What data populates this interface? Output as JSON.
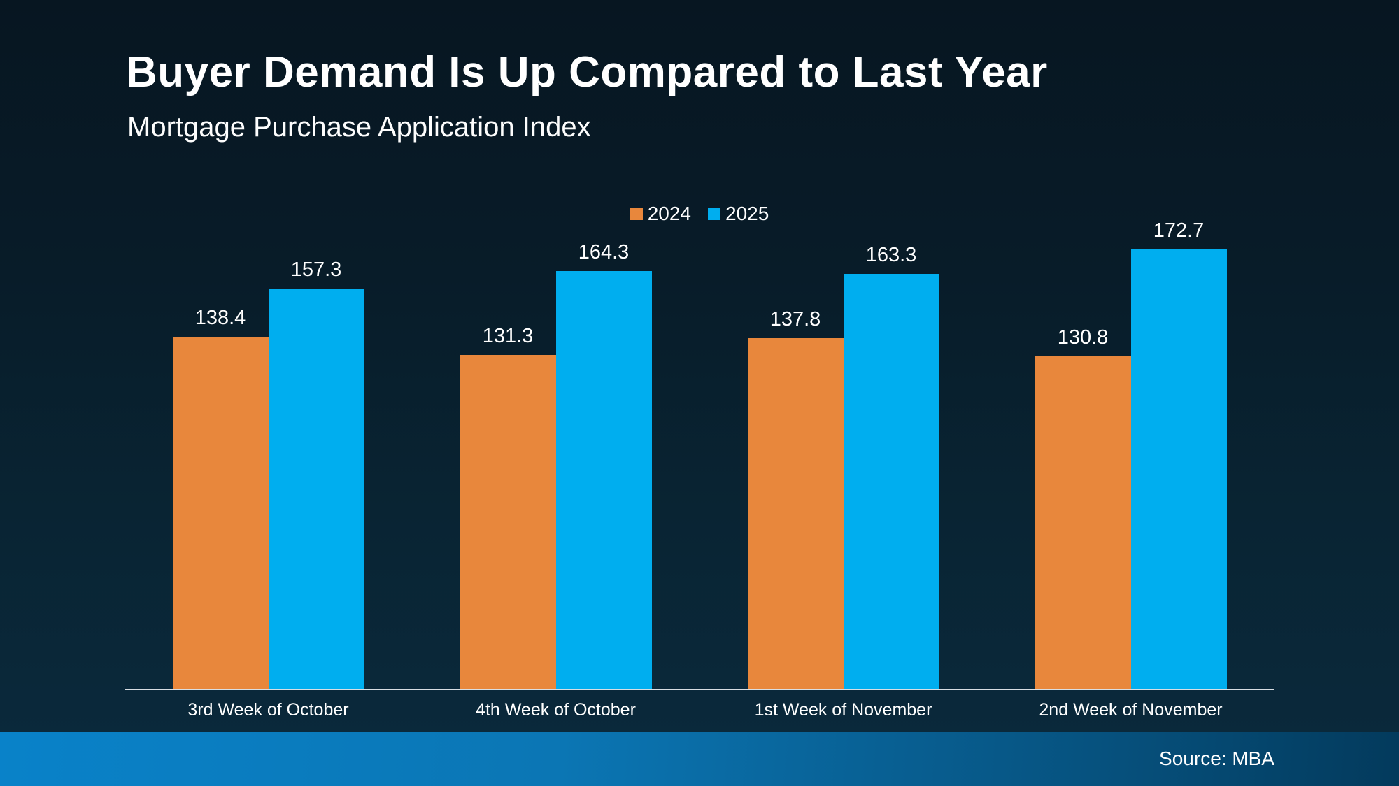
{
  "slide": {
    "title": "Buyer Demand Is Up Compared to Last Year",
    "subtitle": "Mortgage Purchase Application Index",
    "source": "Source: MBA"
  },
  "chart_data": {
    "type": "bar",
    "title": "Buyer Demand Is Up Compared to Last Year",
    "subtitle": "Mortgage Purchase Application Index",
    "categories": [
      "3rd Week of October",
      "4th Week of October",
      "1st Week of November",
      "2nd Week of November"
    ],
    "series": [
      {
        "name": "2024",
        "color": "#E8873C",
        "values": [
          138.4,
          131.3,
          137.8,
          130.8
        ]
      },
      {
        "name": "2025",
        "color": "#00AEEF",
        "values": [
          157.3,
          164.3,
          163.3,
          172.7
        ]
      }
    ],
    "xlabel": "",
    "ylabel": "Mortgage Purchase Application Index",
    "ylim": [
      0,
      180
    ],
    "grid": false,
    "legend_position": "top-center",
    "data_labels": true,
    "source_note": "Source: MBA"
  },
  "colors": {
    "background_top": "#071621",
    "background_bottom": "#0A2A3D",
    "series_2024": "#E8873C",
    "series_2025": "#00AEEF",
    "axis_line": "#D9DEE3",
    "footer_gradient_left": "#0982C9",
    "footer_gradient_right": "#033A5C",
    "text": "#FFFFFF"
  }
}
